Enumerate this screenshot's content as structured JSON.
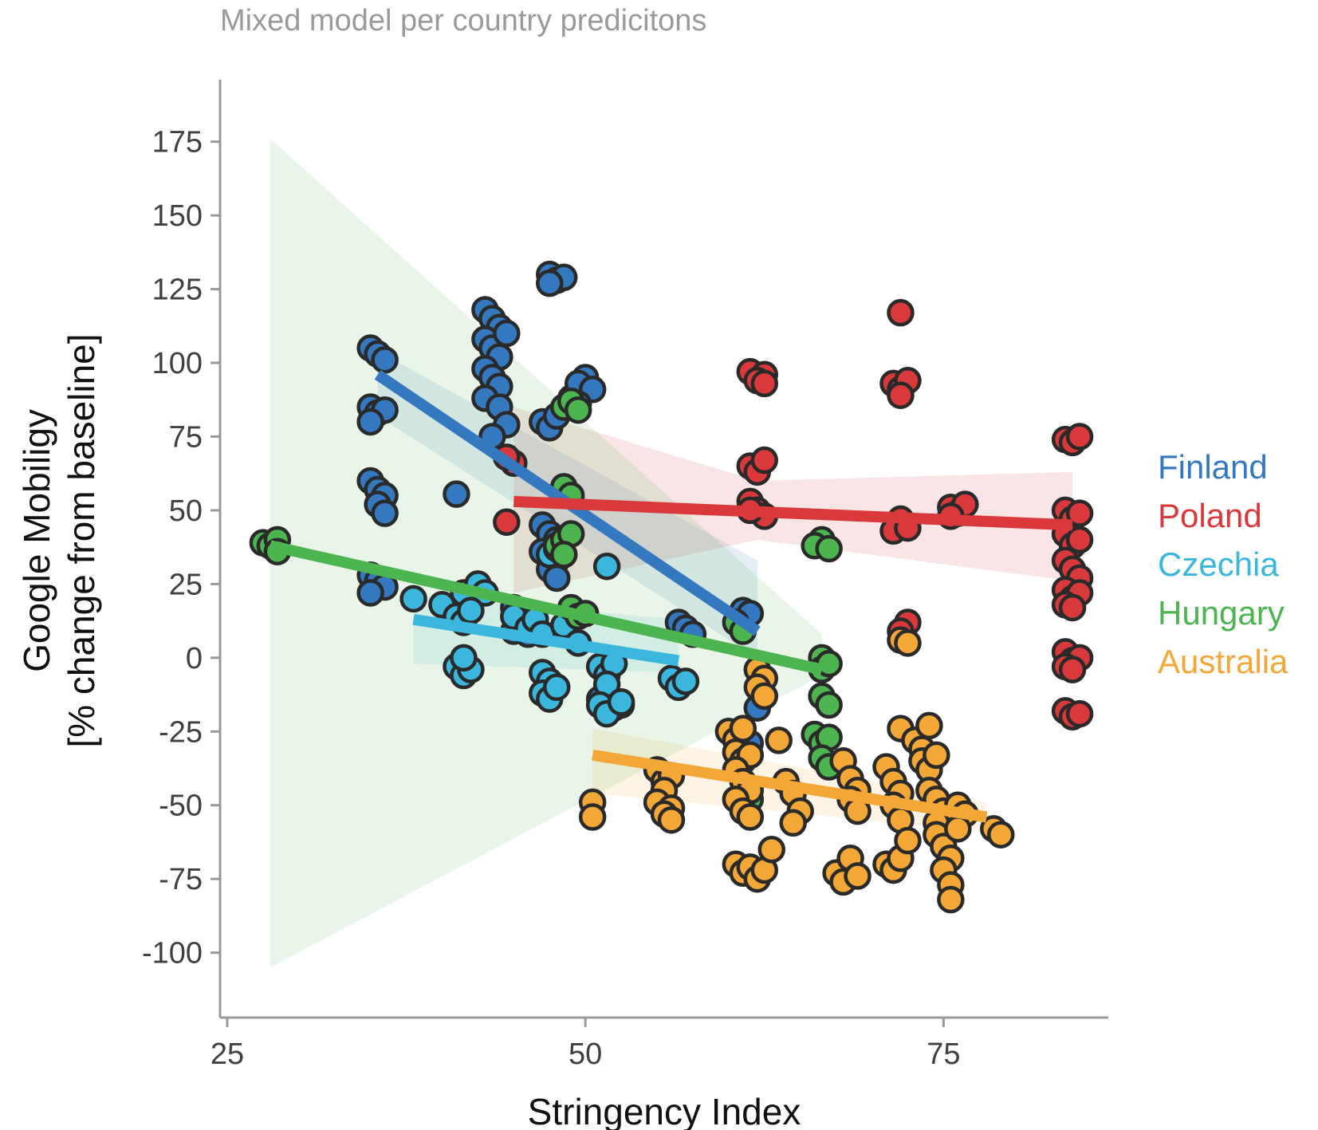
{
  "chart_data": {
    "type": "scatter",
    "title": "Mixed model per country predicitons",
    "xlabel": "Stringency Index",
    "ylabel_line1": "Google Mobiligy",
    "ylabel_line2": "[% change from baseline]",
    "xlim": [
      24.5,
      86.5
    ],
    "ylim": [
      -122,
      196
    ],
    "xticks": [
      25,
      50,
      75
    ],
    "yticks": [
      175,
      150,
      125,
      100,
      75,
      50,
      25,
      0,
      -25,
      -50,
      -75,
      -100
    ],
    "grid": false,
    "legend_position": "right",
    "series": [
      {
        "name": "Finland",
        "color": "#3478bf",
        "fit": {
          "x": [
            35.5,
            62.0
          ],
          "y": [
            96,
            9
          ]
        },
        "ci_band": {
          "x": [
            35.5,
            62.0
          ],
          "lower": [
            82,
            0
          ],
          "upper": [
            104,
            33
          ]
        },
        "points": [
          [
            35,
            105
          ],
          [
            35.5,
            103
          ],
          [
            36,
            101
          ],
          [
            35,
            85
          ],
          [
            35.5,
            83
          ],
          [
            36,
            84
          ],
          [
            35,
            80
          ],
          [
            35,
            60
          ],
          [
            35.5,
            57
          ],
          [
            36,
            55
          ],
          [
            35.5,
            52
          ],
          [
            36,
            49
          ],
          [
            35,
            28
          ],
          [
            35.5,
            26
          ],
          [
            36,
            24
          ],
          [
            35,
            22
          ],
          [
            41,
            55.5
          ],
          [
            43,
            118
          ],
          [
            43.5,
            115
          ],
          [
            44,
            112
          ],
          [
            43,
            108
          ],
          [
            43.5,
            105
          ],
          [
            44,
            102
          ],
          [
            43,
            98
          ],
          [
            43.5,
            95
          ],
          [
            44,
            92
          ],
          [
            43,
            88
          ],
          [
            44,
            85
          ],
          [
            44.5,
            79
          ],
          [
            43.5,
            75
          ],
          [
            44.5,
            110
          ],
          [
            47.5,
            130
          ],
          [
            48,
            128
          ],
          [
            48.5,
            129
          ],
          [
            47.5,
            127
          ],
          [
            47,
            80
          ],
          [
            47.5,
            78
          ],
          [
            48,
            82
          ],
          [
            49,
            88
          ],
          [
            50,
            95
          ],
          [
            49.5,
            93
          ],
          [
            50.5,
            91
          ],
          [
            49.5,
            86
          ],
          [
            47,
            45
          ],
          [
            47.5,
            42
          ],
          [
            48,
            40
          ],
          [
            47,
            36
          ],
          [
            48,
            33
          ],
          [
            47.5,
            30
          ],
          [
            48,
            27
          ],
          [
            45,
            17
          ],
          [
            45.5,
            15
          ],
          [
            46,
            12
          ],
          [
            45,
            9
          ],
          [
            46,
            8
          ],
          [
            56.5,
            12
          ],
          [
            57,
            10
          ],
          [
            57.5,
            8
          ],
          [
            61,
            16
          ],
          [
            61.5,
            15
          ],
          [
            51,
            -14
          ],
          [
            52,
            -17
          ],
          [
            52.5,
            -16
          ],
          [
            62,
            -17
          ],
          [
            61.5,
            -29
          ]
        ]
      },
      {
        "name": "Poland",
        "color": "#d9393b",
        "fit": {
          "x": [
            45.0,
            84.0
          ],
          "y": [
            53,
            45
          ]
        },
        "ci_band": {
          "x": [
            45.0,
            62.0,
            84.0
          ],
          "lower": [
            22,
            40,
            26
          ],
          "upper": [
            85,
            60,
            63
          ]
        },
        "points": [
          [
            44.5,
            46
          ],
          [
            45,
            66
          ],
          [
            44.5,
            68
          ],
          [
            61.5,
            97
          ],
          [
            62.5,
            96
          ],
          [
            62,
            94
          ],
          [
            62.5,
            93
          ],
          [
            61.5,
            65
          ],
          [
            62,
            63
          ],
          [
            62.5,
            67
          ],
          [
            61.5,
            53
          ],
          [
            62,
            50
          ],
          [
            62.5,
            48
          ],
          [
            61.5,
            50
          ],
          [
            72,
            117
          ],
          [
            71.5,
            93
          ],
          [
            72,
            91
          ],
          [
            72.5,
            94
          ],
          [
            72,
            89
          ],
          [
            72,
            47
          ],
          [
            71.5,
            43
          ],
          [
            72.5,
            44
          ],
          [
            72.5,
            12
          ],
          [
            72,
            9
          ],
          [
            75.5,
            51
          ],
          [
            76,
            49
          ],
          [
            76.5,
            52
          ],
          [
            75.5,
            48
          ],
          [
            83.5,
            74
          ],
          [
            84,
            73
          ],
          [
            84.5,
            75
          ],
          [
            83.5,
            50
          ],
          [
            84,
            47
          ],
          [
            84.5,
            49
          ],
          [
            83.5,
            42
          ],
          [
            84,
            38
          ],
          [
            84.5,
            40
          ],
          [
            83.5,
            33
          ],
          [
            84,
            30
          ],
          [
            84.5,
            27
          ],
          [
            83.5,
            23
          ],
          [
            84,
            20
          ],
          [
            84.5,
            22
          ],
          [
            83.5,
            18
          ],
          [
            84,
            17
          ],
          [
            83.5,
            2
          ],
          [
            84,
            -1
          ],
          [
            84.5,
            0
          ],
          [
            83.5,
            -3
          ],
          [
            84,
            -4
          ],
          [
            83.5,
            -18
          ],
          [
            84,
            -20
          ],
          [
            84.5,
            -19
          ]
        ]
      },
      {
        "name": "Czechia",
        "color": "#3bb7dd",
        "fit": {
          "x": [
            38.0,
            56.5
          ],
          "y": [
            13,
            -1
          ]
        },
        "ci_band": {
          "x": [
            38.0,
            56.5
          ],
          "lower": [
            -2,
            -5
          ],
          "upper": [
            21,
            13
          ]
        },
        "points": [
          [
            38,
            20
          ],
          [
            40,
            18
          ],
          [
            41.5,
            22
          ],
          [
            42.5,
            25
          ],
          [
            43,
            22
          ],
          [
            41,
            14
          ],
          [
            41.5,
            12
          ],
          [
            42,
            16
          ],
          [
            41,
            -3
          ],
          [
            41.5,
            -6
          ],
          [
            42,
            -4
          ],
          [
            41.5,
            0
          ],
          [
            45,
            14
          ],
          [
            46,
            10
          ],
          [
            46.5,
            13
          ],
          [
            47,
            8
          ],
          [
            48.5,
            11
          ],
          [
            49.5,
            5
          ],
          [
            47,
            -5
          ],
          [
            47.5,
            -8
          ],
          [
            47,
            -12
          ],
          [
            47.5,
            -14
          ],
          [
            48,
            -10
          ],
          [
            51,
            -3
          ],
          [
            51.5,
            -6
          ],
          [
            52,
            -2
          ],
          [
            51.5,
            -9
          ],
          [
            51,
            -16
          ],
          [
            51.5,
            -19
          ],
          [
            52.5,
            -15
          ],
          [
            56,
            -7
          ],
          [
            56.5,
            -10
          ],
          [
            57,
            -8
          ],
          [
            47.5,
            35
          ],
          [
            48,
            37
          ],
          [
            51.5,
            31
          ]
        ]
      },
      {
        "name": "Hungary",
        "color": "#4db54f",
        "fit": {
          "x": [
            28.0,
            66.5
          ],
          "y": [
            38,
            -4
          ]
        },
        "ci_band": {
          "x": [
            28.0,
            66.5
          ],
          "lower": [
            -105,
            -6
          ],
          "upper": [
            176,
            8
          ]
        },
        "points": [
          [
            27.5,
            39
          ],
          [
            28,
            38
          ],
          [
            28.5,
            40
          ],
          [
            28.5,
            36
          ],
          [
            48.5,
            85
          ],
          [
            49,
            87
          ],
          [
            49.5,
            84
          ],
          [
            48.5,
            58
          ],
          [
            49,
            55
          ],
          [
            48,
            38
          ],
          [
            48.5,
            40
          ],
          [
            49,
            42
          ],
          [
            48.5,
            35
          ],
          [
            49,
            17
          ],
          [
            49.5,
            14
          ],
          [
            50,
            15
          ],
          [
            60.5,
            12
          ],
          [
            61,
            9
          ],
          [
            66.5,
            40
          ],
          [
            66,
            38
          ],
          [
            67,
            37
          ],
          [
            66.5,
            0
          ],
          [
            66.5,
            -4
          ],
          [
            67,
            -2
          ],
          [
            66.5,
            -13
          ],
          [
            67,
            -16
          ],
          [
            66,
            -26
          ],
          [
            66.5,
            -29
          ],
          [
            67,
            -27
          ],
          [
            66.5,
            -34
          ],
          [
            67,
            -37
          ],
          [
            61,
            -50
          ],
          [
            61.5,
            -48
          ]
        ]
      },
      {
        "name": "Australia",
        "color": "#f3a736",
        "fit": {
          "x": [
            50.5,
            78.0
          ],
          "y": [
            -33,
            -54
          ]
        },
        "ci_band": {
          "x": [
            50.5,
            78.0
          ],
          "lower": [
            -46,
            -59
          ],
          "upper": [
            -24,
            -49
          ]
        },
        "points": [
          [
            50.5,
            -49
          ],
          [
            50.5,
            -54
          ],
          [
            55,
            -38
          ],
          [
            55.5,
            -42
          ],
          [
            56,
            -40
          ],
          [
            55.5,
            -45
          ],
          [
            55,
            -49
          ],
          [
            56,
            -51
          ],
          [
            55.5,
            -53
          ],
          [
            56,
            -55
          ],
          [
            60,
            -25
          ],
          [
            60.5,
            -28
          ],
          [
            61,
            -24
          ],
          [
            60.5,
            -32
          ],
          [
            61,
            -35
          ],
          [
            61.5,
            -33
          ],
          [
            60.5,
            -38
          ],
          [
            61,
            -42
          ],
          [
            61.5,
            -45
          ],
          [
            60.5,
            -48
          ],
          [
            61,
            -52
          ],
          [
            61.5,
            -54
          ],
          [
            62,
            -4
          ],
          [
            62.5,
            -7
          ],
          [
            62,
            -10
          ],
          [
            62.5,
            -13
          ],
          [
            60.5,
            -70
          ],
          [
            61,
            -73
          ],
          [
            61.5,
            -71
          ],
          [
            62,
            -75
          ],
          [
            62.5,
            -72
          ],
          [
            63,
            -65
          ],
          [
            63.5,
            -28
          ],
          [
            64,
            -42
          ],
          [
            64.5,
            -46
          ],
          [
            65,
            -52
          ],
          [
            64.5,
            -56
          ],
          [
            68,
            -35
          ],
          [
            68.5,
            -41
          ],
          [
            69,
            -45
          ],
          [
            68.5,
            -48
          ],
          [
            69,
            -52
          ],
          [
            67.5,
            -73
          ],
          [
            68,
            -76
          ],
          [
            68.5,
            -68
          ],
          [
            69,
            -74
          ],
          [
            72,
            6
          ],
          [
            72.5,
            5
          ],
          [
            71,
            -37
          ],
          [
            71.5,
            -42
          ],
          [
            72,
            -46
          ],
          [
            71.5,
            -50
          ],
          [
            72,
            -55
          ],
          [
            71,
            -70
          ],
          [
            71.5,
            -72
          ],
          [
            72,
            -68
          ],
          [
            72,
            -24
          ],
          [
            73,
            -28
          ],
          [
            73.5,
            -31
          ],
          [
            74,
            -23
          ],
          [
            73.5,
            -35
          ],
          [
            74,
            -38
          ],
          [
            74.5,
            -33
          ],
          [
            74,
            -45
          ],
          [
            74.5,
            -48
          ],
          [
            75,
            -52
          ],
          [
            74.5,
            -56
          ],
          [
            74.5,
            -60
          ],
          [
            75,
            -64
          ],
          [
            75.5,
            -68
          ],
          [
            75,
            -72
          ],
          [
            75.5,
            -77
          ],
          [
            75.5,
            -82
          ],
          [
            76,
            -50
          ],
          [
            76.5,
            -53
          ],
          [
            76,
            -58
          ],
          [
            78.5,
            -58
          ],
          [
            79,
            -60
          ],
          [
            72.5,
            -62
          ]
        ]
      }
    ]
  }
}
